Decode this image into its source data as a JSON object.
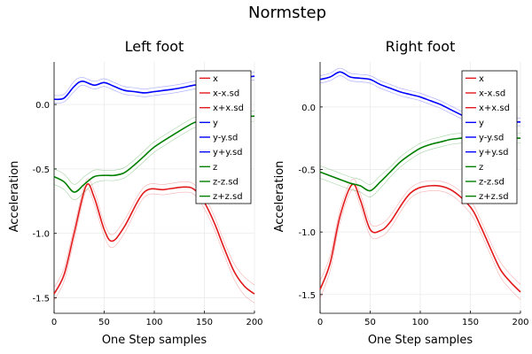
{
  "chart_data": {
    "type": "line",
    "title": "Normstep",
    "colors": {
      "x": "#e31a1c",
      "y": "#0000ff",
      "z": "#008000",
      "band_alpha": 0.35
    },
    "legend": {
      "placement": "top-right",
      "entries": [
        {
          "label": "x",
          "color": "#e31a1c"
        },
        {
          "label": "x-x.sd",
          "color": "#e31a1c"
        },
        {
          "label": "x+x.sd",
          "color": "#e31a1c"
        },
        {
          "label": "y",
          "color": "#0000ff"
        },
        {
          "label": "y-y.sd",
          "color": "#0000ff"
        },
        {
          "label": "y+y.sd",
          "color": "#0000ff"
        },
        {
          "label": "z",
          "color": "#008000"
        },
        {
          "label": "z-z.sd",
          "color": "#008000"
        },
        {
          "label": "z+z.sd",
          "color": "#008000"
        }
      ]
    },
    "panels": [
      {
        "id": "left",
        "title": "Left foot",
        "xlabel": "One Step samples",
        "ylabel": "Acceleration",
        "xlim": [
          0,
          200
        ],
        "ylim": [
          -1.62,
          0.33
        ],
        "xticks": [
          0,
          50,
          100,
          150,
          200
        ],
        "yticks": [
          0.0,
          -0.5,
          -1.0,
          -1.5
        ],
        "ytick_labels": [
          "0.0",
          "-0.5",
          "-1.0",
          "-1.5"
        ],
        "grid": true,
        "series": {
          "x": {
            "x": [
              0,
              10,
              20,
              32,
              40,
              50,
              58,
              70,
              90,
              110,
              130,
              140,
              150,
              160,
              170,
              180,
              190,
              200
            ],
            "y": [
              -1.47,
              -1.32,
              -1.0,
              -0.63,
              -0.72,
              -0.97,
              -1.06,
              -0.95,
              -0.68,
              -0.66,
              -0.64,
              -0.66,
              -0.76,
              -0.92,
              -1.12,
              -1.3,
              -1.41,
              -1.47
            ],
            "sd": [
              0.05,
              0.05,
              0.05,
              0.04,
              0.05,
              0.05,
              0.05,
              0.05,
              0.04,
              0.04,
              0.04,
              0.04,
              0.05,
              0.05,
              0.05,
              0.06,
              0.07,
              0.07
            ]
          },
          "y": {
            "x": [
              0,
              10,
              20,
              28,
              40,
              50,
              60,
              70,
              80,
              90,
              100,
              120,
              140,
              160,
              180,
              190,
              200
            ],
            "y": [
              0.04,
              0.05,
              0.14,
              0.18,
              0.15,
              0.17,
              0.14,
              0.11,
              0.1,
              0.09,
              0.1,
              0.12,
              0.15,
              0.18,
              0.2,
              0.21,
              0.22
            ],
            "sd": [
              0.03,
              0.03,
              0.04,
              0.03,
              0.03,
              0.03,
              0.03,
              0.03,
              0.03,
              0.03,
              0.03,
              0.03,
              0.03,
              0.03,
              0.03,
              0.03,
              0.03
            ]
          },
          "z": {
            "x": [
              0,
              10,
              20,
              30,
              40,
              50,
              60,
              70,
              80,
              90,
              100,
              120,
              140,
              150,
              160,
              180,
              200
            ],
            "y": [
              -0.56,
              -0.6,
              -0.68,
              -0.62,
              -0.56,
              -0.55,
              -0.55,
              -0.53,
              -0.47,
              -0.4,
              -0.33,
              -0.23,
              -0.14,
              -0.13,
              -0.12,
              -0.1,
              -0.09
            ],
            "sd": [
              0.06,
              0.06,
              0.06,
              0.06,
              0.05,
              0.04,
              0.04,
              0.04,
              0.04,
              0.04,
              0.04,
              0.04,
              0.04,
              0.04,
              0.04,
              0.04,
              0.04
            ]
          }
        }
      },
      {
        "id": "right",
        "title": "Right foot",
        "xlabel": "One Step samples",
        "ylabel": "Acceleration",
        "xlim": [
          0,
          200
        ],
        "ylim": [
          -1.65,
          0.36
        ],
        "xticks": [
          0,
          50,
          100,
          150,
          200
        ],
        "yticks": [
          0.0,
          -0.5,
          -1.0,
          -1.5
        ],
        "ytick_labels": [
          "0.0",
          "-0.5",
          "-1.0",
          "-1.5"
        ],
        "grid": true,
        "series": {
          "x": {
            "x": [
              0,
              10,
              20,
              32,
              40,
              50,
              60,
              70,
              90,
              110,
              130,
              150,
              160,
              170,
              180,
              190,
              200
            ],
            "y": [
              -1.46,
              -1.25,
              -0.87,
              -0.62,
              -0.74,
              -0.98,
              -0.99,
              -0.92,
              -0.69,
              -0.63,
              -0.66,
              -0.8,
              -0.95,
              -1.13,
              -1.3,
              -1.4,
              -1.48
            ],
            "sd": [
              0.07,
              0.06,
              0.05,
              0.04,
              0.05,
              0.05,
              0.05,
              0.05,
              0.04,
              0.04,
              0.04,
              0.05,
              0.05,
              0.05,
              0.06,
              0.06,
              0.06
            ]
          },
          "y": {
            "x": [
              0,
              10,
              20,
              30,
              40,
              50,
              60,
              70,
              80,
              90,
              100,
              110,
              120,
              130,
              140,
              150,
              170,
              200
            ],
            "y": [
              0.22,
              0.24,
              0.28,
              0.24,
              0.23,
              0.22,
              0.18,
              0.15,
              0.12,
              0.1,
              0.08,
              0.05,
              0.02,
              -0.02,
              -0.06,
              -0.1,
              -0.12,
              -0.12
            ],
            "sd": [
              0.03,
              0.03,
              0.03,
              0.03,
              0.03,
              0.03,
              0.03,
              0.03,
              0.03,
              0.03,
              0.03,
              0.03,
              0.03,
              0.03,
              0.03,
              0.03,
              0.03,
              0.03
            ]
          },
          "z": {
            "x": [
              0,
              10,
              20,
              30,
              40,
              50,
              60,
              70,
              80,
              90,
              100,
              110,
              120,
              130,
              140,
              150,
              170,
              200
            ],
            "y": [
              -0.52,
              -0.55,
              -0.58,
              -0.61,
              -0.63,
              -0.67,
              -0.6,
              -0.52,
              -0.44,
              -0.38,
              -0.33,
              -0.3,
              -0.28,
              -0.26,
              -0.25,
              -0.24,
              -0.24,
              -0.25
            ],
            "sd": [
              0.05,
              0.05,
              0.05,
              0.05,
              0.05,
              0.05,
              0.05,
              0.04,
              0.04,
              0.04,
              0.04,
              0.04,
              0.04,
              0.04,
              0.04,
              0.04,
              0.04,
              0.04
            ]
          }
        }
      }
    ]
  }
}
